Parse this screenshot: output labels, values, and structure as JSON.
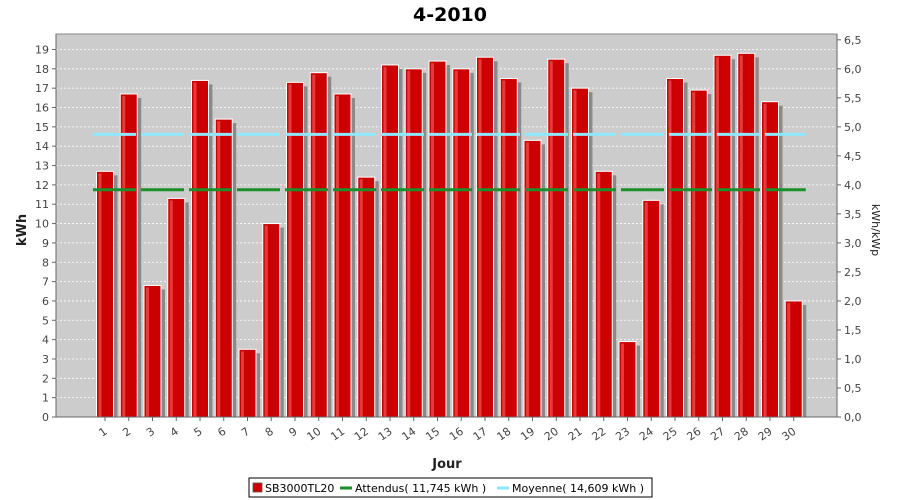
{
  "chart_data": {
    "type": "bar",
    "title": "4-2010",
    "xlabel": "Jour",
    "ylabel": "kWh",
    "ylabel_right": "kWh/kWp",
    "ylim": [
      0,
      19.8
    ],
    "ylim_right": [
      0,
      6.6
    ],
    "yticks": [
      0,
      1,
      2,
      3,
      4,
      5,
      6,
      7,
      8,
      9,
      10,
      11,
      12,
      13,
      14,
      15,
      16,
      17,
      18,
      19
    ],
    "yticks_right": [
      "0,0",
      "0,5",
      "1,0",
      "1,5",
      "2,0",
      "2,5",
      "3,0",
      "3,5",
      "4,0",
      "4,5",
      "5,0",
      "5,5",
      "6,0",
      "6,5"
    ],
    "yticks_right_values": [
      0,
      0.5,
      1,
      1.5,
      2,
      2.5,
      3,
      3.5,
      4,
      4.5,
      5,
      5.5,
      6,
      6.5
    ],
    "categories": [
      "1",
      "2",
      "3",
      "4",
      "5",
      "6",
      "7",
      "8",
      "9",
      "10",
      "11",
      "12",
      "13",
      "14",
      "15",
      "16",
      "17",
      "18",
      "19",
      "20",
      "21",
      "22",
      "23",
      "24",
      "25",
      "26",
      "27",
      "28",
      "29",
      "30"
    ],
    "series": [
      {
        "name": "SB3000TL20",
        "color": "#cc0000",
        "values": [
          12.7,
          16.7,
          6.8,
          11.3,
          17.4,
          15.4,
          3.5,
          10.0,
          17.3,
          17.8,
          16.7,
          12.4,
          18.2,
          18.0,
          18.4,
          18.0,
          18.6,
          17.5,
          14.3,
          18.5,
          17.0,
          12.7,
          3.9,
          11.2,
          17.5,
          16.9,
          18.7,
          18.8,
          16.3,
          6.0
        ]
      }
    ],
    "lines": [
      {
        "name": "Attendus",
        "value": 11.745,
        "color": "#1a8f2a"
      },
      {
        "name": "Moyenne",
        "value": 14.609,
        "color": "#8fe8ff"
      }
    ],
    "legend": {
      "placement": "bottom",
      "items": [
        "SB3000TL20",
        "Attendus( 11,745 kWh )",
        "Moyenne( 14,609 kWh )"
      ]
    },
    "grid": true,
    "plot_background": "#cccccc"
  }
}
